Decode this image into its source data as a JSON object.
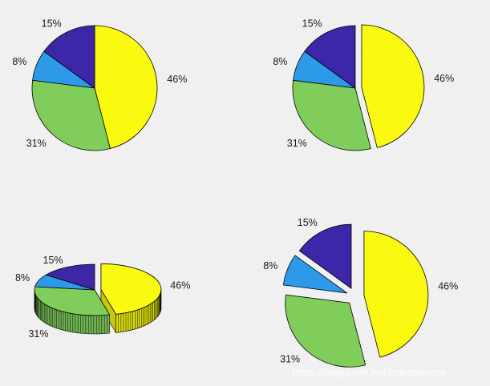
{
  "chart_data": [
    {
      "type": "pie",
      "variant": "plain",
      "slices": [
        {
          "label": "46%",
          "value": 46,
          "color": "#f9fa0f",
          "explode": false
        },
        {
          "label": "31%",
          "value": 31,
          "color": "#80cd5c",
          "explode": false
        },
        {
          "label": "8%",
          "value": 8,
          "color": "#2d9ae9",
          "explode": false
        },
        {
          "label": "15%",
          "value": 15,
          "color": "#3d26a8",
          "explode": false
        }
      ]
    },
    {
      "type": "pie",
      "variant": "exploded-one",
      "slices": [
        {
          "label": "46%",
          "value": 46,
          "color": "#f9fa0f",
          "explode": true
        },
        {
          "label": "31%",
          "value": 31,
          "color": "#80cd5c",
          "explode": false
        },
        {
          "label": "8%",
          "value": 8,
          "color": "#2d9ae9",
          "explode": false
        },
        {
          "label": "15%",
          "value": 15,
          "color": "#3d26a8",
          "explode": false
        }
      ]
    },
    {
      "type": "pie",
      "variant": "3d",
      "slices": [
        {
          "label": "46%",
          "value": 46,
          "color": "#f9fa0f",
          "explode": true
        },
        {
          "label": "31%",
          "value": 31,
          "color": "#80cd5c",
          "explode": false
        },
        {
          "label": "8%",
          "value": 8,
          "color": "#2d9ae9",
          "explode": false
        },
        {
          "label": "15%",
          "value": 15,
          "color": "#3d26a8",
          "explode": false
        }
      ]
    },
    {
      "type": "pie",
      "variant": "exploded-all",
      "slices": [
        {
          "label": "46%",
          "value": 46,
          "color": "#f9fa0f",
          "explode": true
        },
        {
          "label": "31%",
          "value": 31,
          "color": "#80cd5c",
          "explode": true
        },
        {
          "label": "8%",
          "value": 8,
          "color": "#2d9ae9",
          "explode": true
        },
        {
          "label": "15%",
          "value": 15,
          "color": "#3d26a8",
          "explode": true
        }
      ]
    }
  ],
  "watermark": "https://blog.csdn.net/bsjsosososo"
}
